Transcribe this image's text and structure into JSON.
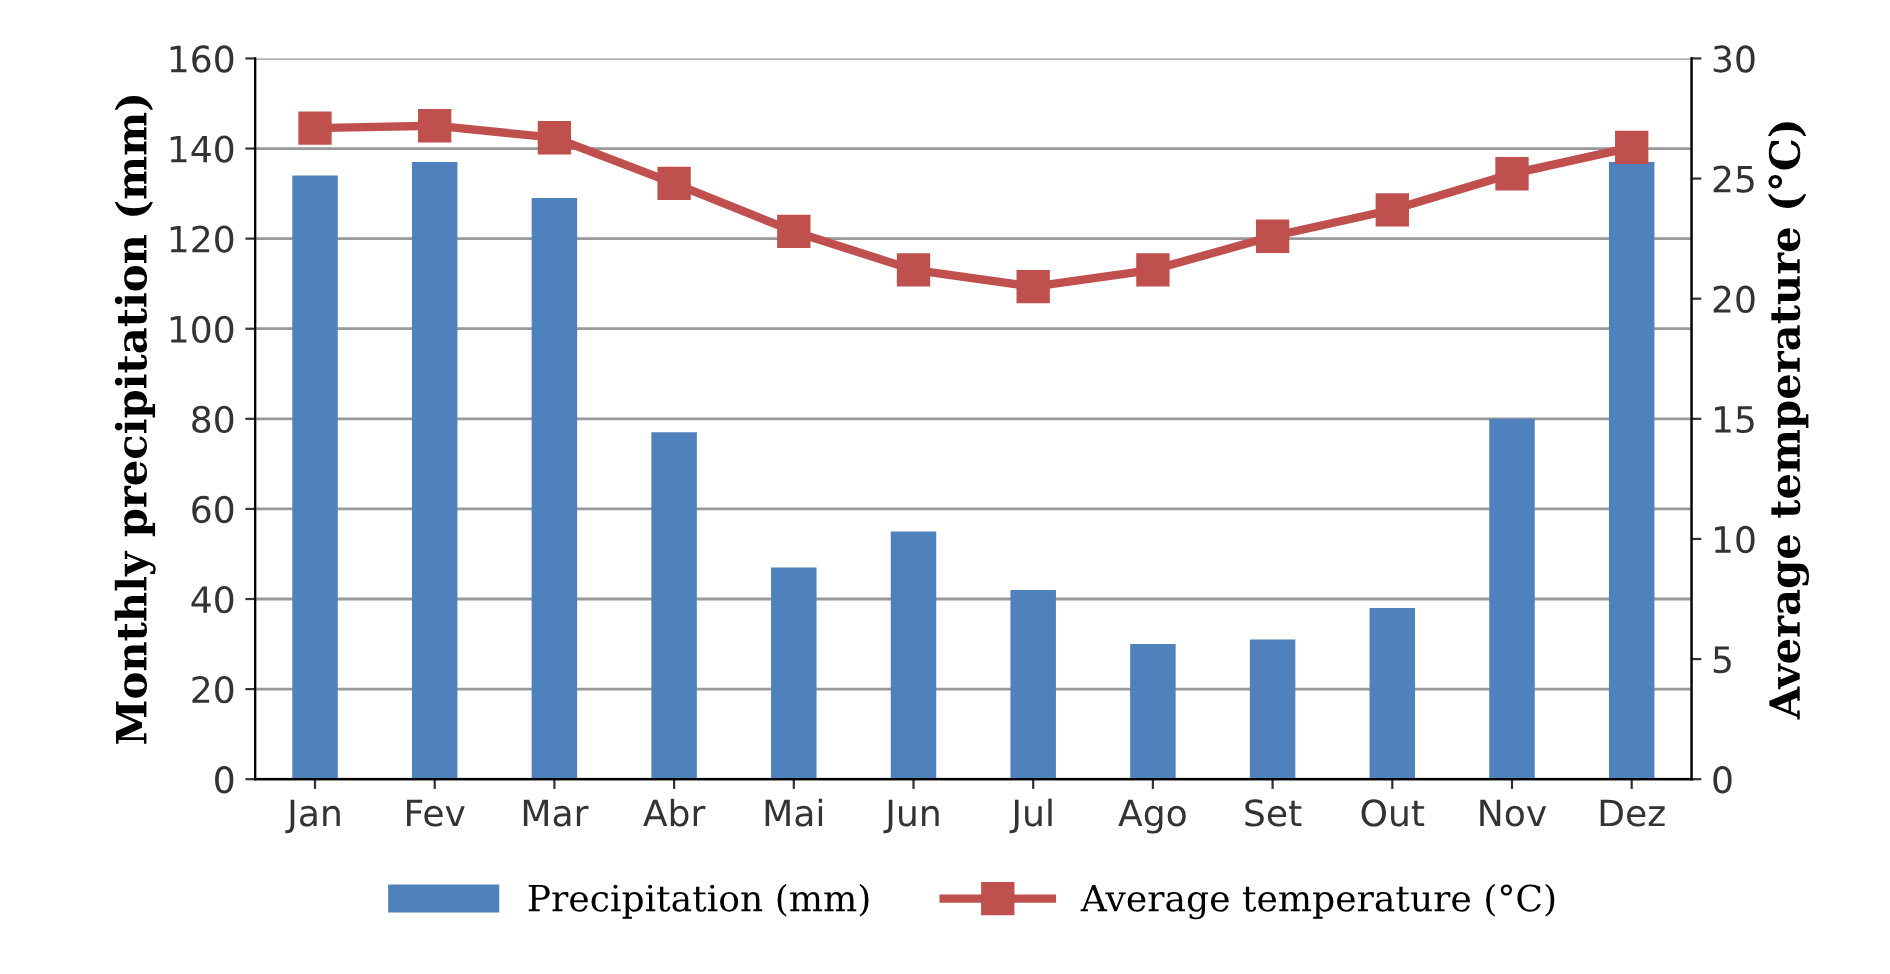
{
  "chart_data": {
    "type": "bar",
    "xlabel": null,
    "ylabel": "Monthly precipitation (mm)",
    "y2label": "Average temperature (°C)",
    "categories": [
      "Jan",
      "Fev",
      "Mar",
      "Abr",
      "Mai",
      "Jun",
      "Jul",
      "Ago",
      "Set",
      "Out",
      "Nov",
      "Dez"
    ],
    "series": [
      {
        "name": "Precipitation (mm)",
        "color": "#4f81bd",
        "values": [
          134,
          137,
          129,
          77,
          47,
          55,
          42,
          30,
          31,
          38,
          80,
          137
        ]
      },
      {
        "name": "Average temperature (°C)",
        "type": "line",
        "axis": "y2",
        "color": "#c0504d",
        "marker": "square",
        "values": [
          27.1,
          27.2,
          26.7,
          24.8,
          22.8,
          21.2,
          20.5,
          21.2,
          22.6,
          23.7,
          25.2,
          26.3
        ]
      }
    ],
    "ylim": [
      0,
      160
    ],
    "yticks": [
      0,
      20,
      40,
      60,
      80,
      100,
      120,
      140,
      160
    ],
    "y2lim": [
      0,
      30
    ],
    "y2ticks": [
      0,
      5,
      10,
      15,
      20,
      25,
      30
    ],
    "grid": "y",
    "legend": "bottom"
  }
}
